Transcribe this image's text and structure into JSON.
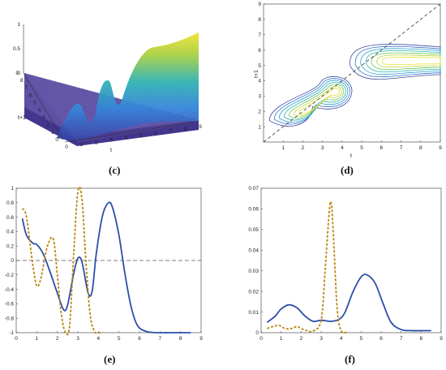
{
  "chart_data": [
    {
      "panel": "(c)",
      "type": "surface",
      "xlabel": "t",
      "ylabel": "t+1",
      "x_ticks": [
        "0",
        "1",
        "2",
        "3",
        "4",
        "5",
        "6",
        "7",
        "8",
        "9"
      ],
      "y_ticks": [
        "0",
        "1",
        "2",
        "3",
        "4",
        "5",
        "6",
        "7",
        "8",
        "9"
      ],
      "z_ticks": [
        "0",
        "0.5",
        "1"
      ],
      "xlim": [
        0,
        9
      ],
      "ylim": [
        0,
        9
      ],
      "zlim": [
        0,
        1
      ],
      "peaks": [
        {
          "t": 1.5,
          "t1": 1.5,
          "z": 0.35
        },
        {
          "t": 2.6,
          "t1": 2.6,
          "z": 0.45
        },
        {
          "t": 3.8,
          "t1": 4.2,
          "z": 0.75
        },
        {
          "t": 5.0,
          "t1": 5.5,
          "z": 0.6
        }
      ],
      "colormap": "parula"
    },
    {
      "panel": "(d)",
      "type": "contour",
      "xlabel": "t",
      "ylabel": "t+1",
      "x_ticks": [
        "1",
        "2",
        "3",
        "4",
        "5",
        "6",
        "7",
        "8",
        "9"
      ],
      "y_ticks": [
        "1",
        "2",
        "3",
        "4",
        "5",
        "6",
        "7",
        "8",
        "9"
      ],
      "xlim": [
        0,
        9
      ],
      "ylim": [
        0,
        9
      ],
      "diagonal_reference": true,
      "levels": 7
    },
    {
      "panel": "(e)",
      "type": "line",
      "x_ticks": [
        "0",
        "1",
        "2",
        "3",
        "4",
        "5",
        "6",
        "7",
        "8",
        "9"
      ],
      "y_ticks": [
        "-1",
        "-0.8",
        "-0.6",
        "-0.4",
        "-0.2",
        "0",
        "0.2",
        "0.4",
        "0.6",
        "0.8",
        "1"
      ],
      "xlim": [
        0,
        9
      ],
      "ylim": [
        -1,
        1
      ],
      "zero_reference_line": true,
      "series": [
        {
          "style": "solid",
          "color": "#2b4fa8",
          "x": [
            0.3,
            0.5,
            0.8,
            1.0,
            1.3,
            1.6,
            2.0,
            2.3,
            2.5,
            2.8,
            3.0,
            3.2,
            3.5,
            3.7,
            3.9,
            4.2,
            4.5,
            4.7,
            5.0,
            5.3,
            5.6,
            5.9,
            6.3,
            6.8,
            7.5,
            8.0,
            8.5
          ],
          "y": [
            0.58,
            0.35,
            0.24,
            0.22,
            0.1,
            -0.12,
            -0.45,
            -0.68,
            -0.62,
            -0.18,
            0.03,
            -0.02,
            -0.45,
            -0.42,
            0.1,
            0.62,
            0.8,
            0.72,
            0.35,
            -0.2,
            -0.65,
            -0.9,
            -0.98,
            -1.0,
            -1.0,
            -1.0,
            -1.0
          ]
        },
        {
          "style": "dashed",
          "color": "#b8860b",
          "x": [
            0.3,
            0.5,
            0.8,
            1.0,
            1.2,
            1.5,
            1.8,
            2.0,
            2.2,
            2.4,
            2.6,
            2.8,
            3.0,
            3.2,
            3.4,
            3.6,
            3.8,
            4.0,
            4.2
          ],
          "y": [
            0.72,
            0.6,
            -0.05,
            -0.35,
            -0.25,
            0.18,
            0.3,
            -0.2,
            -0.75,
            -1.0,
            -0.9,
            0.1,
            0.95,
            0.85,
            -0.05,
            -0.75,
            -0.98,
            -1.0,
            -1.0
          ]
        }
      ]
    },
    {
      "panel": "(f)",
      "type": "line",
      "x_ticks": [
        "0",
        "1",
        "2",
        "3",
        "4",
        "5",
        "6",
        "7",
        "8",
        "9"
      ],
      "y_ticks": [
        "0",
        "0.01",
        "0.02",
        "0.03",
        "0.04",
        "0.05",
        "0.06",
        "0.07"
      ],
      "xlim": [
        0,
        9
      ],
      "ylim": [
        0,
        0.07
      ],
      "series": [
        {
          "style": "solid",
          "color": "#2b4fa8",
          "x": [
            0.3,
            0.7,
            1.0,
            1.4,
            1.8,
            2.2,
            2.6,
            3.0,
            3.5,
            3.9,
            4.2,
            4.6,
            5.0,
            5.3,
            5.7,
            6.1,
            6.5,
            7.0,
            7.5,
            8.0,
            8.5
          ],
          "y": [
            0.005,
            0.008,
            0.0115,
            0.0135,
            0.012,
            0.008,
            0.0055,
            0.006,
            0.0055,
            0.0065,
            0.01,
            0.02,
            0.027,
            0.028,
            0.024,
            0.014,
            0.005,
            0.0015,
            0.001,
            0.001,
            0.001
          ]
        },
        {
          "style": "dashed",
          "color": "#b8860b",
          "x": [
            0.3,
            0.6,
            0.9,
            1.2,
            1.5,
            1.8,
            2.0,
            2.3,
            2.6,
            3.0,
            3.2,
            3.4,
            3.5,
            3.6,
            3.8,
            4.0,
            4.3
          ],
          "y": [
            0.002,
            0.003,
            0.0035,
            0.002,
            0.002,
            0.003,
            0.002,
            0.001,
            0.0008,
            0.006,
            0.03,
            0.058,
            0.063,
            0.05,
            0.012,
            0.001,
            0.0002
          ]
        }
      ]
    }
  ]
}
